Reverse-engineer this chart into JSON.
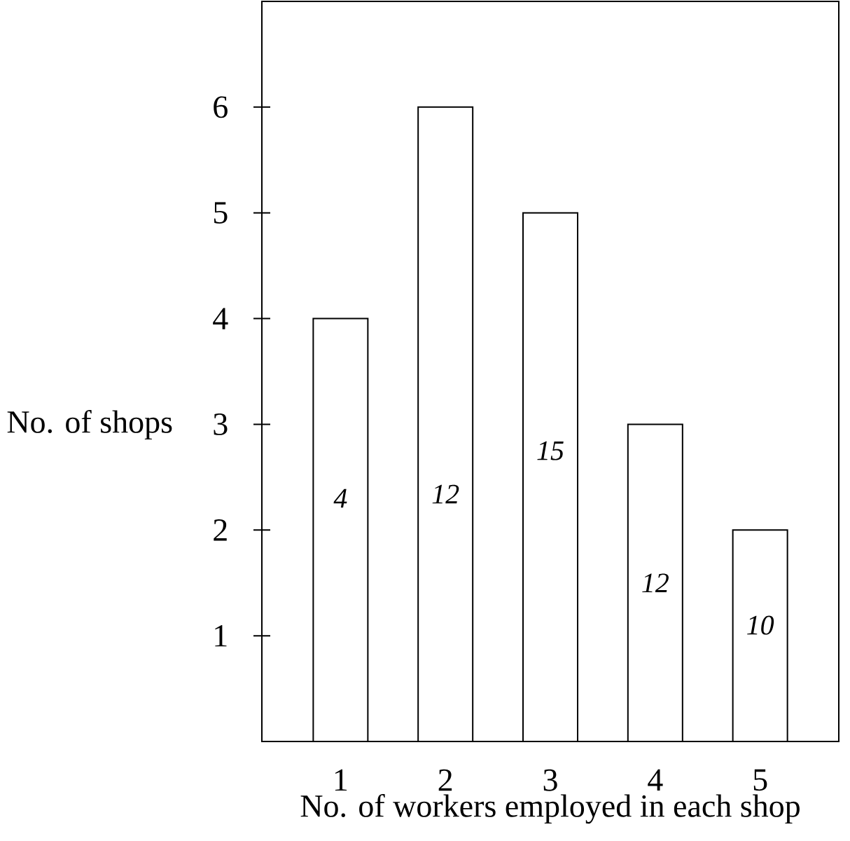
{
  "chart_data": {
    "type": "bar",
    "xlabel": "No. of workers employed in each shop",
    "ylabel": "No. of shops",
    "categories": [
      "1",
      "2",
      "3",
      "4",
      "5"
    ],
    "values": [
      4,
      6,
      5,
      3,
      2
    ],
    "color": "#ffffff",
    "ylim": [
      0,
      7
    ],
    "yticks": [
      1,
      2,
      3,
      4,
      5,
      6
    ],
    "annotations": [
      "4",
      "12",
      "15",
      "12",
      "10"
    ]
  }
}
